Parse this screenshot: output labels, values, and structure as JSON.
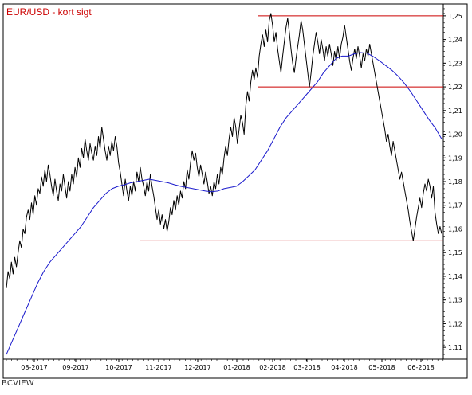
{
  "chart_data": {
    "type": "line",
    "title": "EUR/USD - kort sigt",
    "title_color": "#cc0000",
    "xlabel": "",
    "ylabel": "",
    "ylim": [
      1.105,
      1.255
    ],
    "y_ticks": [
      1.11,
      1.12,
      1.13,
      1.14,
      1.15,
      1.16,
      1.17,
      1.18,
      1.19,
      1.2,
      1.21,
      1.22,
      1.23,
      1.24,
      1.25
    ],
    "y_tick_labels": [
      "1,11",
      "1,12",
      "1,13",
      "1,14",
      "1,15",
      "1,16",
      "1,17",
      "1,18",
      "1,19",
      "1,20",
      "1,21",
      "1,22",
      "1,23",
      "1,24",
      "1,25"
    ],
    "x_ticks": [
      "08-2017",
      "09-2017",
      "10-2017",
      "11-2017",
      "12-2017",
      "01-2018",
      "02-2018",
      "03-2018",
      "04-2018",
      "05-2018",
      "06-2018"
    ],
    "grid": false,
    "series": [
      {
        "color": "#000000",
        "values": [
          1.135,
          1.142,
          1.139,
          1.146,
          1.141,
          1.148,
          1.144,
          1.15,
          1.155,
          1.152,
          1.16,
          1.158,
          1.165,
          1.168,
          1.164,
          1.171,
          1.166,
          1.174,
          1.17,
          1.177,
          1.175,
          1.182,
          1.178,
          1.185,
          1.18,
          1.187,
          1.183,
          1.178,
          1.174,
          1.181,
          1.176,
          1.172,
          1.179,
          1.176,
          1.183,
          1.178,
          1.173,
          1.18,
          1.176,
          1.183,
          1.179,
          1.186,
          1.182,
          1.19,
          1.186,
          1.194,
          1.19,
          1.198,
          1.193,
          1.189,
          1.196,
          1.192,
          1.189,
          1.195,
          1.191,
          1.199,
          1.194,
          1.203,
          1.198,
          1.193,
          1.189,
          1.195,
          1.191,
          1.197,
          1.193,
          1.199,
          1.195,
          1.188,
          1.184,
          1.179,
          1.174,
          1.181,
          1.176,
          1.172,
          1.178,
          1.174,
          1.18,
          1.176,
          1.184,
          1.18,
          1.186,
          1.181,
          1.178,
          1.174,
          1.18,
          1.176,
          1.183,
          1.178,
          1.174,
          1.169,
          1.164,
          1.168,
          1.162,
          1.166,
          1.16,
          1.164,
          1.159,
          1.163,
          1.169,
          1.166,
          1.172,
          1.168,
          1.174,
          1.17,
          1.176,
          1.173,
          1.18,
          1.177,
          1.185,
          1.181,
          1.188,
          1.193,
          1.189,
          1.192,
          1.186,
          1.182,
          1.187,
          1.183,
          1.179,
          1.184,
          1.18,
          1.175,
          1.178,
          1.174,
          1.18,
          1.177,
          1.183,
          1.179,
          1.186,
          1.183,
          1.19,
          1.195,
          1.191,
          1.198,
          1.203,
          1.199,
          1.207,
          1.203,
          1.196,
          1.202,
          1.208,
          1.205,
          1.2,
          1.212,
          1.218,
          1.214,
          1.222,
          1.227,
          1.223,
          1.228,
          1.224,
          1.233,
          1.238,
          1.242,
          1.237,
          1.244,
          1.239,
          1.248,
          1.251,
          1.246,
          1.239,
          1.243,
          1.236,
          1.231,
          1.226,
          1.233,
          1.239,
          1.245,
          1.249,
          1.243,
          1.236,
          1.23,
          1.226,
          1.232,
          1.237,
          1.242,
          1.248,
          1.244,
          1.238,
          1.232,
          1.226,
          1.22,
          1.226,
          1.233,
          1.238,
          1.243,
          1.239,
          1.234,
          1.24,
          1.236,
          1.231,
          1.237,
          1.233,
          1.238,
          1.234,
          1.229,
          1.235,
          1.231,
          1.237,
          1.232,
          1.238,
          1.241,
          1.246,
          1.241,
          1.236,
          1.231,
          1.227,
          1.232,
          1.236,
          1.232,
          1.237,
          1.233,
          1.228,
          1.234,
          1.231,
          1.236,
          1.233,
          1.238,
          1.234,
          1.23,
          1.226,
          1.222,
          1.218,
          1.214,
          1.21,
          1.206,
          1.202,
          1.197,
          1.2,
          1.195,
          1.191,
          1.197,
          1.193,
          1.189,
          1.185,
          1.181,
          1.184,
          1.18,
          1.176,
          1.172,
          1.168,
          1.163,
          1.159,
          1.155,
          1.16,
          1.165,
          1.169,
          1.173,
          1.169,
          1.175,
          1.179,
          1.176,
          1.181,
          1.178,
          1.173,
          1.178,
          1.167,
          1.162,
          1.158,
          1.161,
          1.158
        ]
      },
      {
        "color": "#1a1acc",
        "values": [
          1.107,
          1.113,
          1.119,
          1.125,
          1.131,
          1.137,
          1.142,
          1.146,
          1.149,
          1.152,
          1.155,
          1.158,
          1.161,
          1.165,
          1.169,
          1.172,
          1.175,
          1.177,
          1.178,
          1.1787,
          1.1795,
          1.18,
          1.1805,
          1.181,
          1.1805,
          1.18,
          1.1795,
          1.1787,
          1.178,
          1.1775,
          1.177,
          1.1765,
          1.176,
          1.1757,
          1.176,
          1.177,
          1.1775,
          1.178,
          1.18,
          1.1825,
          1.185,
          1.189,
          1.193,
          1.198,
          1.203,
          1.207,
          1.21,
          1.213,
          1.216,
          1.219,
          1.222,
          1.226,
          1.229,
          1.232,
          1.233,
          1.233,
          1.234,
          1.2345,
          1.2342,
          1.2328,
          1.231,
          1.229,
          1.227,
          1.2245,
          1.2215,
          1.218,
          1.214,
          1.21,
          1.206,
          1.2025,
          1.198
        ]
      }
    ],
    "hlines": [
      {
        "y": 1.25,
        "x_start": "01-2018",
        "x_end": "06-2018",
        "color": "#cc0000"
      },
      {
        "y": 1.22,
        "x_start": "01-2018",
        "x_end": "06-2018",
        "color": "#cc0000"
      },
      {
        "y": 1.155,
        "x_start": "10-2017",
        "x_end": "06-2018",
        "color": "#cc0000"
      }
    ]
  },
  "footer": {
    "brand": "BCVIEW"
  },
  "colors": {
    "frame": "#000000",
    "background": "#ffffff",
    "accent": "#cc0000"
  }
}
